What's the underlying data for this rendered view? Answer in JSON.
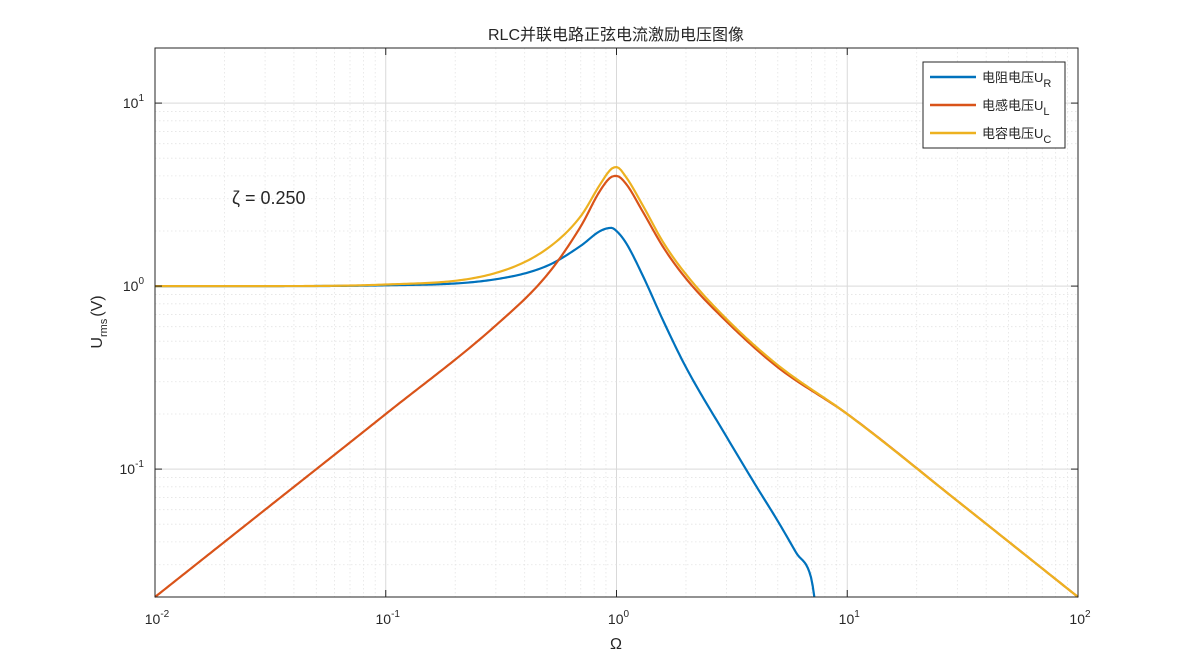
{
  "chart_data": {
    "type": "line",
    "title": "RLC并联电路正弦电流激励电压图像",
    "xlabel": "Ω",
    "ylabel_main": "U",
    "ylabel_sub": "rms",
    "ylabel_unit": "(V)",
    "xscale": "log",
    "yscale": "log",
    "xlim": [
      0.01,
      100
    ],
    "ylim": [
      0.02,
      20
    ],
    "grid": "on (major and minor)",
    "legend_position": "top-right",
    "x_ticks": [
      {
        "base": "10",
        "exp": "-2"
      },
      {
        "base": "10",
        "exp": "-1"
      },
      {
        "base": "10",
        "exp": "0"
      },
      {
        "base": "10",
        "exp": "1"
      },
      {
        "base": "10",
        "exp": "2"
      }
    ],
    "y_ticks": [
      {
        "base": "10",
        "exp": "-1"
      },
      {
        "base": "10",
        "exp": "0"
      },
      {
        "base": "10",
        "exp": "1"
      }
    ],
    "annotation": "ζ = 0.250",
    "zeta": 0.25,
    "series": [
      {
        "name": "电阻电压",
        "sub": "R",
        "color": "#0072BD",
        "x": [
          0.01,
          0.03,
          0.1,
          0.3,
          0.5,
          0.7,
          0.85,
          0.95,
          1.0,
          1.1,
          1.3,
          1.6,
          2,
          3,
          4,
          5,
          6,
          7,
          7.2
        ],
        "y": [
          1.0,
          1.0,
          1.01,
          1.09,
          1.29,
          1.66,
          2.0,
          2.08,
          2.0,
          1.72,
          1.14,
          0.64,
          0.36,
          0.15,
          0.082,
          0.052,
          0.035,
          0.025,
          0.02
        ]
      },
      {
        "name": "电感电压",
        "sub": "L",
        "color": "#D95319",
        "x": [
          0.01,
          0.03,
          0.1,
          0.3,
          0.5,
          0.7,
          0.85,
          0.95,
          1.0,
          1.1,
          1.3,
          1.6,
          2,
          3,
          5,
          10,
          30,
          100
        ],
        "y": [
          0.02,
          0.06,
          0.2,
          0.61,
          1.15,
          2.12,
          3.33,
          3.95,
          4.0,
          3.62,
          2.55,
          1.62,
          1.1,
          0.64,
          0.36,
          0.2,
          0.067,
          0.02
        ]
      },
      {
        "name": "电容电压",
        "sub": "C",
        "color": "#EDB120",
        "x": [
          0.01,
          0.03,
          0.1,
          0.3,
          0.5,
          0.7,
          0.85,
          0.95,
          1.0,
          1.1,
          1.3,
          1.6,
          2,
          3,
          5,
          10,
          30,
          100
        ],
        "y": [
          1.0,
          1.0,
          1.02,
          1.18,
          1.6,
          2.41,
          3.6,
          4.37,
          4.47,
          3.94,
          2.76,
          1.72,
          1.16,
          0.66,
          0.37,
          0.2,
          0.067,
          0.02
        ]
      }
    ]
  }
}
